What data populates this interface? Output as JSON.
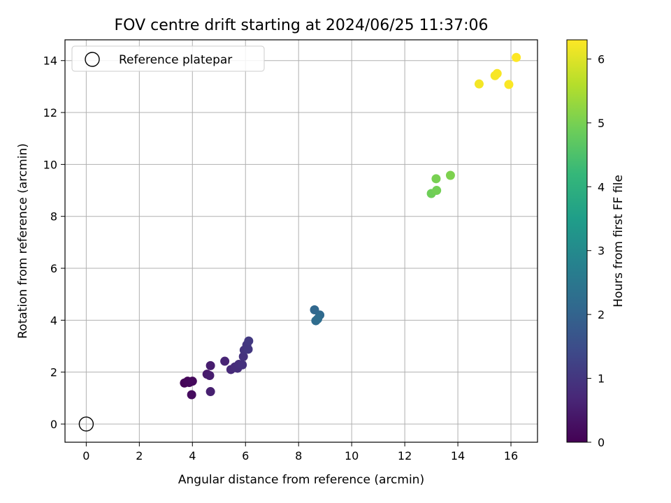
{
  "chart_data": {
    "type": "scatter",
    "title": "FOV centre drift starting at 2024/06/25 11:37:06",
    "xlabel": "Angular distance from reference (arcmin)",
    "ylabel": "Rotation from reference (arcmin)",
    "xlim": [
      -0.8,
      17.0
    ],
    "ylim": [
      -0.7,
      14.8
    ],
    "xticks": [
      0,
      2,
      4,
      6,
      8,
      10,
      12,
      14,
      16
    ],
    "yticks": [
      0,
      2,
      4,
      6,
      8,
      10,
      12,
      14
    ],
    "grid": true,
    "legend": {
      "placement": "top-left",
      "entries": [
        "Reference platepar"
      ]
    },
    "reference_point": {
      "name": "Reference platepar",
      "x": 0,
      "y": 0,
      "marker": "open-circle"
    },
    "colorbar": {
      "label": "Hours from first FF file",
      "colormap": "viridis",
      "range": [
        0,
        6.3
      ],
      "ticks": [
        0,
        1,
        2,
        3,
        4,
        5,
        6
      ]
    },
    "points": [
      {
        "x": 3.7,
        "y": 1.58,
        "c": 0.05
      },
      {
        "x": 3.82,
        "y": 1.65,
        "c": 0.1
      },
      {
        "x": 3.88,
        "y": 1.6,
        "c": 0.12
      },
      {
        "x": 4.0,
        "y": 1.65,
        "c": 0.15
      },
      {
        "x": 3.97,
        "y": 1.13,
        "c": 0.2
      },
      {
        "x": 4.55,
        "y": 1.92,
        "c": 0.45
      },
      {
        "x": 4.65,
        "y": 1.87,
        "c": 0.5
      },
      {
        "x": 4.68,
        "y": 2.25,
        "c": 0.5
      },
      {
        "x": 4.68,
        "y": 1.25,
        "c": 0.55
      },
      {
        "x": 5.22,
        "y": 2.42,
        "c": 0.65
      },
      {
        "x": 5.45,
        "y": 2.1,
        "c": 0.75
      },
      {
        "x": 5.6,
        "y": 2.2,
        "c": 0.8
      },
      {
        "x": 5.7,
        "y": 2.15,
        "c": 0.82
      },
      {
        "x": 5.75,
        "y": 2.3,
        "c": 0.85
      },
      {
        "x": 5.88,
        "y": 2.28,
        "c": 0.9
      },
      {
        "x": 5.92,
        "y": 2.6,
        "c": 0.92
      },
      {
        "x": 5.95,
        "y": 2.85,
        "c": 0.95
      },
      {
        "x": 6.05,
        "y": 3.05,
        "c": 1.0
      },
      {
        "x": 6.1,
        "y": 2.88,
        "c": 1.02
      },
      {
        "x": 6.12,
        "y": 3.2,
        "c": 1.05
      },
      {
        "x": 8.6,
        "y": 4.4,
        "c": 2.1
      },
      {
        "x": 8.8,
        "y": 4.2,
        "c": 2.15
      },
      {
        "x": 8.65,
        "y": 3.98,
        "c": 2.2
      },
      {
        "x": 8.72,
        "y": 4.05,
        "c": 2.22
      },
      {
        "x": 13.0,
        "y": 8.88,
        "c": 4.9
      },
      {
        "x": 13.2,
        "y": 9.0,
        "c": 4.95
      },
      {
        "x": 13.18,
        "y": 9.45,
        "c": 5.0
      },
      {
        "x": 13.72,
        "y": 9.58,
        "c": 5.05
      },
      {
        "x": 14.8,
        "y": 13.1,
        "c": 6.2
      },
      {
        "x": 15.4,
        "y": 13.42,
        "c": 6.22
      },
      {
        "x": 15.48,
        "y": 13.5,
        "c": 6.25
      },
      {
        "x": 15.92,
        "y": 13.08,
        "c": 6.27
      },
      {
        "x": 16.2,
        "y": 14.12,
        "c": 6.3
      }
    ]
  }
}
